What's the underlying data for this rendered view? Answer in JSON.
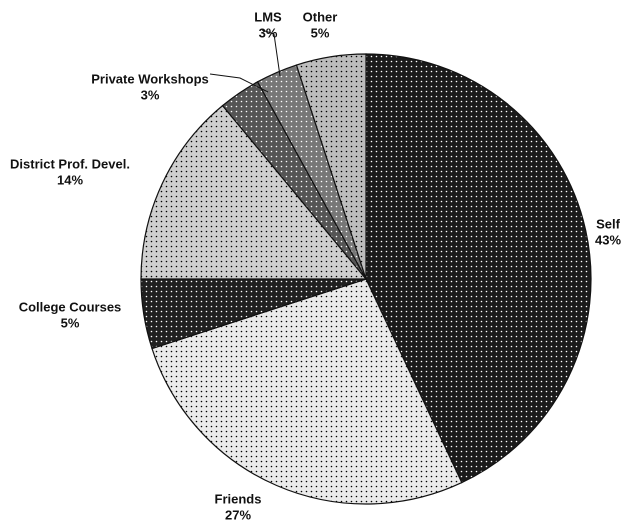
{
  "chart_data": {
    "type": "pie",
    "categories": [
      "Self",
      "Friends",
      "College Courses",
      "District Prof. Devel.",
      "Private Workshops",
      "LMS",
      "Other"
    ],
    "values": [
      43,
      27,
      5,
      14,
      3,
      3,
      5
    ],
    "value_labels": [
      "43%",
      "27%",
      "5%",
      "14%",
      "3%",
      "3%",
      "5%"
    ],
    "colors": [
      "#1a1a1a",
      "#ebebeb",
      "#202020",
      "#cfcfcf",
      "#555555",
      "#777777",
      "#bdbdbd"
    ]
  }
}
